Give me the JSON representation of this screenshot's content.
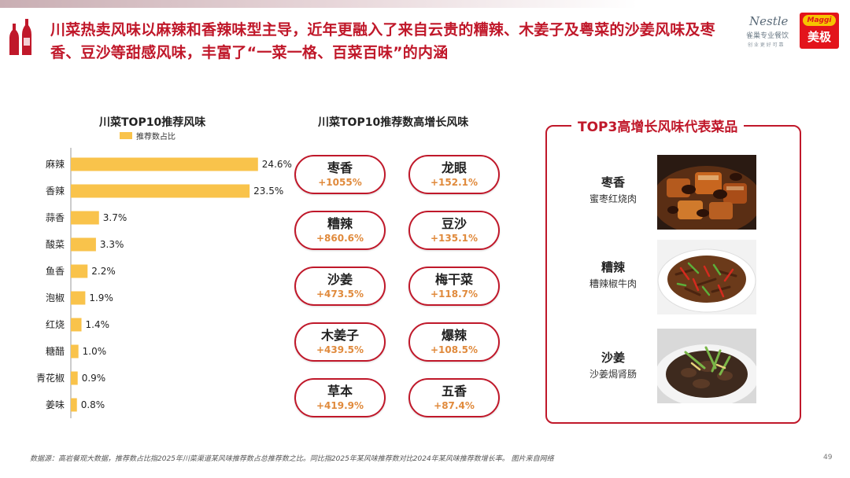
{
  "headline": "川菜热卖风味以麻辣和香辣味型主导，近年更融入了来自云贵的糟辣、木姜子及粤菜的沙姜风味及枣香、豆沙等甜感风味，丰富了“一菜一格、百菜百味”的内涵",
  "logos": {
    "nestle_brand": "Nestle",
    "nestle_sub": "雀巢专业餐饮",
    "nestle_sub2": "创 业 更 好 可 靠",
    "maggi_brand": "Maggi",
    "maggi_cn": "美极"
  },
  "left_chart": {
    "title": "川菜TOP10推荐风味",
    "legend_label": "推荐数占比"
  },
  "chart_data": {
    "type": "bar",
    "orientation": "horizontal",
    "title": "川菜TOP10推荐风味",
    "categories": [
      "麻辣",
      "香辣",
      "蒜香",
      "酸菜",
      "鱼香",
      "泡椒",
      "红烧",
      "糖醋",
      "青花椒",
      "姜味"
    ],
    "series": [
      {
        "name": "推荐数占比",
        "values": [
          24.6,
          23.5,
          3.7,
          3.3,
          2.2,
          1.9,
          1.4,
          1.0,
          0.9,
          0.8
        ],
        "labels": [
          "24.6%",
          "23.5%",
          "3.7%",
          "3.3%",
          "2.2%",
          "1.9%",
          "1.4%",
          "1.0%",
          "0.9%",
          "0.8%"
        ]
      }
    ],
    "xlim": [
      0,
      30
    ],
    "grid": false,
    "legend_position": "top",
    "bar_color": "#f9c34b"
  },
  "growth": {
    "title": "川菜TOP10推荐数高增长风味",
    "items": [
      {
        "name": "枣香",
        "value": "+1055%"
      },
      {
        "name": "龙眼",
        "value": "+152.1%"
      },
      {
        "name": "糟辣",
        "value": "+860.6%"
      },
      {
        "name": "豆沙",
        "value": "+135.1%"
      },
      {
        "name": "沙姜",
        "value": "+473.5%"
      },
      {
        "name": "梅干菜",
        "value": "+118.7%"
      },
      {
        "name": "木姜子",
        "value": "+439.5%"
      },
      {
        "name": "爆辣",
        "value": "+108.5%"
      },
      {
        "name": "草本",
        "value": "+419.9%"
      },
      {
        "name": "五香",
        "value": "+87.4%"
      }
    ]
  },
  "top3": {
    "title": "TOP3高增长风味代表菜品",
    "dishes": [
      {
        "flavor": "枣香",
        "dish": "蜜枣红烧肉"
      },
      {
        "flavor": "糟辣",
        "dish": "糟辣椒牛肉"
      },
      {
        "flavor": "沙姜",
        "dish": "沙姜焗肾肠"
      }
    ]
  },
  "footer": "数据源：高岩餐观大数据，推荐数占比指2025年川菜渠道某风味推荐数占总推荐数之比。同比指2025年某风味推荐数对比2024年某风味推荐数增长率。 图片来自网络",
  "page_number": "49",
  "colors": {
    "accent": "#c0182a",
    "bar": "#f9c34b",
    "growth_value": "#e08a3c"
  }
}
